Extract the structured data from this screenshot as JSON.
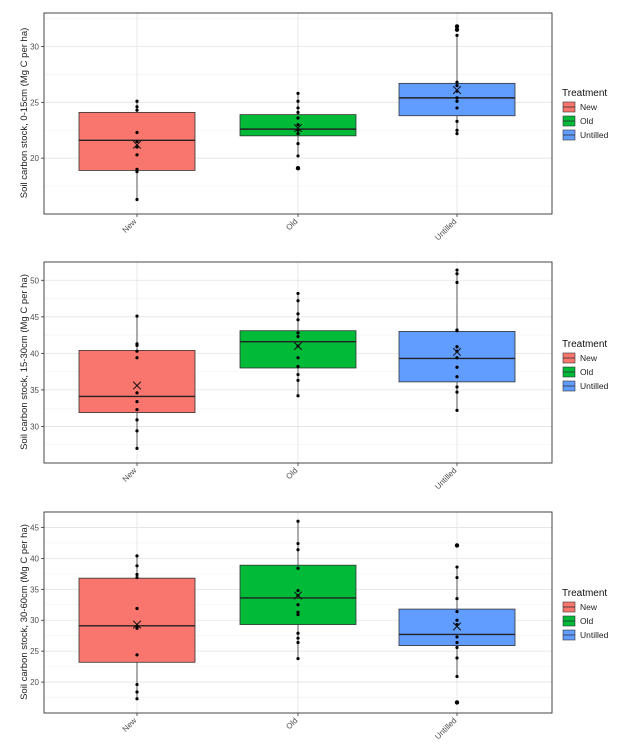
{
  "colors": {
    "New": "#F8766D",
    "Old": "#00BA38",
    "Untilled": "#619CFF"
  },
  "chart_data": [
    {
      "type": "box",
      "title": "",
      "xlabel": "",
      "ylabel": "Soil carbon stock, 0-15cm (Mg C per ha)",
      "ylim": [
        15,
        33
      ],
      "ytick_labels": [
        "20",
        "25",
        "30"
      ],
      "ytick_values": [
        20,
        25,
        30
      ],
      "categories": [
        "New",
        "Old",
        "Untilled"
      ],
      "grid": true,
      "legend": {
        "title": "Treatment",
        "entries": [
          "New",
          "Old",
          "Untilled"
        ],
        "position": "right"
      },
      "boxes": [
        {
          "category": "New",
          "q1": 18.9,
          "median": 21.6,
          "q3": 24.1,
          "whisker_low": 16.3,
          "whisker_high": 25.1,
          "mean": 21.2,
          "points": [
            16.3,
            18.8,
            19.0,
            20.3,
            21.0,
            21.5,
            22.3,
            24.3,
            24.6,
            25.1
          ],
          "outliers": []
        },
        {
          "category": "Old",
          "q1": 22.0,
          "median": 22.6,
          "q3": 23.9,
          "whisker_low": 20.2,
          "whisker_high": 25.8,
          "mean": 22.7,
          "points": [
            20.2,
            21.3,
            22.2,
            22.5,
            23.0,
            23.6,
            24.1,
            24.5,
            25.1,
            25.8
          ],
          "outliers": [
            19.1
          ]
        },
        {
          "category": "Untilled",
          "q1": 23.8,
          "median": 25.4,
          "q3": 26.7,
          "whisker_low": 22.2,
          "whisker_high": 31.0,
          "mean": 26.1,
          "points": [
            22.2,
            22.5,
            23.3,
            24.5,
            25.1,
            25.4,
            26.0,
            26.5,
            26.8,
            31.0
          ],
          "outliers": [
            31.5,
            31.8
          ]
        }
      ]
    },
    {
      "type": "box",
      "title": "",
      "xlabel": "",
      "ylabel": "Soil carbon stock, 15-30cm (Mg C per ha)",
      "ylim": [
        25,
        52.5
      ],
      "ytick_labels": [
        "30",
        "35",
        "40",
        "45",
        "50"
      ],
      "ytick_values": [
        30,
        35,
        40,
        45,
        50
      ],
      "categories": [
        "New",
        "Old",
        "Untilled"
      ],
      "grid": true,
      "legend": {
        "title": "Treatment",
        "entries": [
          "New",
          "Old",
          "Untilled"
        ],
        "position": "right"
      },
      "boxes": [
        {
          "category": "New",
          "q1": 31.9,
          "median": 34.1,
          "q3": 40.4,
          "whisker_low": 27.0,
          "whisker_high": 45.1,
          "mean": 35.6,
          "points": [
            27.0,
            29.4,
            30.9,
            32.3,
            33.4,
            34.6,
            39.4,
            40.3,
            41.1,
            41.3,
            45.1
          ],
          "outliers": []
        },
        {
          "category": "Old",
          "q1": 38.0,
          "median": 41.6,
          "q3": 43.1,
          "whisker_low": 34.2,
          "whisker_high": 48.2,
          "mean": 41.0,
          "points": [
            34.2,
            36.3,
            37.1,
            38.2,
            39.4,
            41.0,
            42.3,
            42.8,
            44.6,
            45.4,
            47.2,
            48.2
          ],
          "outliers": []
        },
        {
          "category": "Untilled",
          "q1": 36.1,
          "median": 39.3,
          "q3": 43.0,
          "whisker_low": 32.2,
          "whisker_high": 51.4,
          "mean": 40.2,
          "points": [
            32.2,
            34.7,
            35.4,
            36.8,
            38.1,
            39.4,
            40.3,
            40.9,
            43.1,
            43.2,
            49.7,
            50.9,
            51.4
          ],
          "outliers": []
        }
      ]
    },
    {
      "type": "box",
      "title": "",
      "xlabel": "",
      "ylabel": "Soil carbon stock, 30-60cm (Mg C per ha)",
      "ylim": [
        15,
        47.5
      ],
      "ytick_labels": [
        "20",
        "25",
        "30",
        "35",
        "40",
        "45"
      ],
      "ytick_values": [
        20,
        25,
        30,
        35,
        40,
        45
      ],
      "categories": [
        "New",
        "Old",
        "Untilled"
      ],
      "grid": true,
      "legend": {
        "title": "Treatment",
        "entries": [
          "New",
          "Old",
          "Untilled"
        ],
        "position": "right"
      },
      "boxes": [
        {
          "category": "New",
          "q1": 23.2,
          "median": 29.1,
          "q3": 36.8,
          "whisker_low": 17.3,
          "whisker_high": 40.4,
          "mean": 29.3,
          "points": [
            17.3,
            18.4,
            19.6,
            24.4,
            28.7,
            29.0,
            31.9,
            36.9,
            37.4,
            38.8,
            40.4
          ],
          "outliers": []
        },
        {
          "category": "Old",
          "q1": 29.3,
          "median": 33.6,
          "q3": 38.9,
          "whisker_low": 23.8,
          "whisker_high": 46.0,
          "mean": 34.0,
          "points": [
            23.8,
            26.4,
            27.1,
            27.9,
            30.9,
            31.3,
            32.5,
            34.0,
            34.8,
            38.4,
            41.4,
            42.4,
            46.0
          ],
          "outliers": []
        },
        {
          "category": "Untilled",
          "q1": 25.9,
          "median": 27.7,
          "q3": 31.8,
          "whisker_low": 20.9,
          "whisker_high": 38.6,
          "mean": 29.0,
          "points": [
            20.9,
            23.9,
            25.6,
            26.4,
            27.3,
            29.3,
            30.0,
            31.4,
            33.5,
            36.9,
            38.6
          ],
          "outliers": [
            42.1,
            16.7
          ]
        }
      ]
    }
  ]
}
